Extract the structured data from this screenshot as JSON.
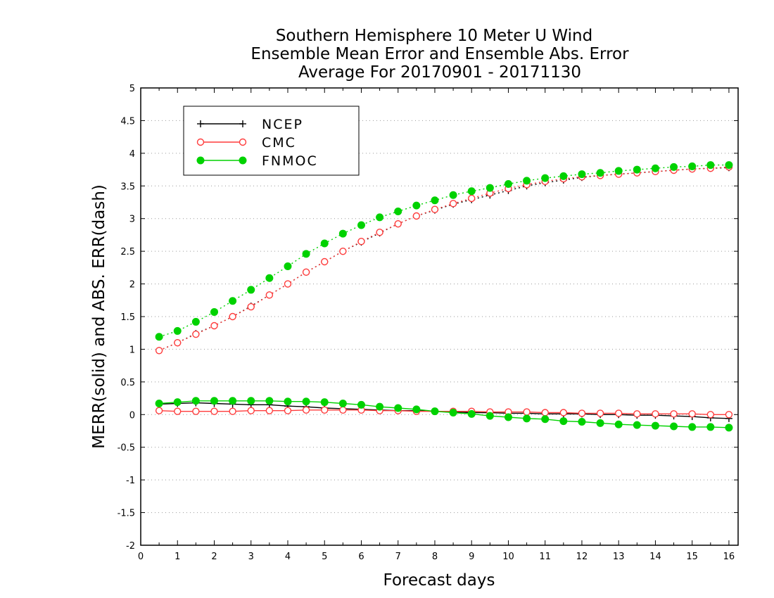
{
  "chart_data": {
    "type": "line",
    "title": [
      "Southern Hemisphere 10 Meter U Wind",
      "Ensemble Mean Error and Ensemble Abs. Error",
      "Average For 20170901 - 20171130"
    ],
    "xlabel": "Forecast days",
    "ylabel": "MERR(solid) and ABS. ERR(dash)",
    "xlim": [
      0,
      16.25
    ],
    "ylim": [
      -2,
      5
    ],
    "xticks": [
      0,
      1,
      2,
      3,
      4,
      5,
      6,
      7,
      8,
      9,
      10,
      11,
      12,
      13,
      14,
      15,
      16
    ],
    "yticks": [
      -2,
      -1.5,
      -1,
      -0.5,
      0,
      0.5,
      1,
      1.5,
      2,
      2.5,
      3,
      3.5,
      4,
      4.5,
      5
    ],
    "ytick_labels": [
      "-2",
      "-1.5",
      "-1",
      "-0.5",
      "0",
      "0.5",
      "1",
      "1.5",
      "2",
      "2.5",
      "3",
      "3.5",
      "4",
      "4.5",
      "5"
    ],
    "grid": true,
    "legend_position": "top-left",
    "x": [
      0.5,
      1,
      1.5,
      2,
      2.5,
      3,
      3.5,
      4,
      4.5,
      5,
      5.5,
      6,
      6.5,
      7,
      7.5,
      8,
      8.5,
      9,
      9.5,
      10,
      10.5,
      11,
      11.5,
      12,
      12.5,
      13,
      13.5,
      14,
      14.5,
      15,
      15.5,
      16
    ],
    "series": [
      {
        "name": "NCEP",
        "color": "#000000",
        "marker": "plus",
        "merr": [
          0.16,
          0.17,
          0.18,
          0.17,
          0.16,
          0.15,
          0.15,
          0.13,
          0.12,
          0.1,
          0.09,
          0.08,
          0.07,
          0.06,
          0.06,
          0.05,
          0.04,
          0.03,
          0.03,
          0.02,
          0.02,
          0.01,
          0.01,
          0.01,
          0.0,
          0.0,
          -0.01,
          -0.01,
          -0.02,
          -0.03,
          -0.05,
          -0.06
        ],
        "abs_err": [
          0.98,
          1.1,
          1.24,
          1.36,
          1.5,
          1.66,
          1.83,
          2.0,
          2.18,
          2.34,
          2.5,
          2.64,
          2.78,
          2.92,
          3.04,
          3.13,
          3.22,
          3.29,
          3.36,
          3.43,
          3.5,
          3.55,
          3.59,
          3.63,
          3.66,
          3.68,
          3.7,
          3.72,
          3.74,
          3.76,
          3.77,
          3.78
        ]
      },
      {
        "name": "CMC",
        "color": "#ff3c3c",
        "marker": "open-circle",
        "merr": [
          0.06,
          0.05,
          0.05,
          0.05,
          0.05,
          0.06,
          0.06,
          0.06,
          0.07,
          0.07,
          0.07,
          0.07,
          0.06,
          0.06,
          0.05,
          0.05,
          0.05,
          0.05,
          0.04,
          0.04,
          0.04,
          0.03,
          0.03,
          0.02,
          0.02,
          0.02,
          0.01,
          0.01,
          0.01,
          0.01,
          0.0,
          0.0
        ],
        "abs_err": [
          0.98,
          1.1,
          1.23,
          1.36,
          1.5,
          1.65,
          1.83,
          2.0,
          2.18,
          2.34,
          2.5,
          2.65,
          2.79,
          2.92,
          3.04,
          3.14,
          3.23,
          3.31,
          3.39,
          3.46,
          3.52,
          3.57,
          3.61,
          3.64,
          3.66,
          3.68,
          3.7,
          3.72,
          3.74,
          3.76,
          3.77,
          3.79
        ]
      },
      {
        "name": "FNMOC",
        "color": "#00d200",
        "marker": "filled-circle",
        "merr": [
          0.17,
          0.19,
          0.21,
          0.21,
          0.21,
          0.21,
          0.21,
          0.2,
          0.2,
          0.19,
          0.17,
          0.15,
          0.12,
          0.1,
          0.08,
          0.05,
          0.03,
          0.01,
          -0.02,
          -0.04,
          -0.06,
          -0.07,
          -0.1,
          -0.11,
          -0.13,
          -0.15,
          -0.16,
          -0.17,
          -0.18,
          -0.19,
          -0.19,
          -0.2
        ],
        "abs_err": [
          1.19,
          1.28,
          1.42,
          1.57,
          1.74,
          1.91,
          2.09,
          2.27,
          2.46,
          2.62,
          2.77,
          2.9,
          3.02,
          3.11,
          3.2,
          3.28,
          3.36,
          3.42,
          3.47,
          3.53,
          3.58,
          3.62,
          3.65,
          3.68,
          3.7,
          3.73,
          3.75,
          3.77,
          3.79,
          3.8,
          3.82,
          3.82
        ]
      }
    ]
  }
}
